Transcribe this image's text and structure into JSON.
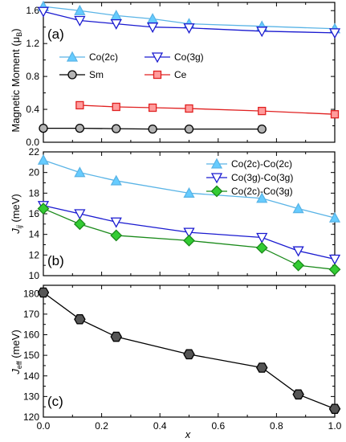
{
  "chart_data": [
    {
      "type": "line",
      "panel_label": "(a)",
      "ylabel": "Magnetic Moment (μB)",
      "ylim": [
        0.0,
        1.7
      ],
      "yticks": [
        0.0,
        0.4,
        0.8,
        1.2,
        1.6
      ],
      "xlim": [
        0.0,
        1.0
      ],
      "legend": [
        {
          "text": "Co(2c)",
          "series": 0
        },
        {
          "text": "Co(3g)",
          "series": 1
        },
        {
          "text": "Sm",
          "series": 2
        },
        {
          "text": "Ce",
          "series": 3
        }
      ],
      "series": [
        {
          "name": "Co(2c)",
          "color": "#5ab4e6",
          "marker": "triangle-up",
          "fill": "#66ccff",
          "x": [
            0.0,
            0.125,
            0.25,
            0.375,
            0.5,
            0.75,
            1.0
          ],
          "y": [
            1.65,
            1.6,
            1.54,
            1.5,
            1.44,
            1.41,
            1.38
          ]
        },
        {
          "name": "Co(3g)",
          "color": "#1a1ad0",
          "marker": "triangle-down",
          "fill": "#ffffff",
          "x": [
            0.0,
            0.125,
            0.25,
            0.375,
            0.5,
            0.75,
            1.0
          ],
          "y": [
            1.59,
            1.48,
            1.44,
            1.4,
            1.39,
            1.35,
            1.33
          ]
        },
        {
          "name": "Sm",
          "color": "#000000",
          "marker": "circle",
          "fill": "#b4b4b4",
          "x": [
            0.0,
            0.125,
            0.25,
            0.375,
            0.5,
            0.75
          ],
          "y": [
            0.17,
            0.17,
            0.165,
            0.16,
            0.16,
            0.16
          ]
        },
        {
          "name": "Ce",
          "color": "#e02020",
          "marker": "square",
          "fill": "#ff9c9c",
          "x": [
            0.125,
            0.25,
            0.375,
            0.5,
            0.75,
            1.0
          ],
          "y": [
            0.45,
            0.43,
            0.42,
            0.41,
            0.38,
            0.34
          ]
        }
      ]
    },
    {
      "type": "line",
      "panel_label": "(b)",
      "ylabel": "Jij (meV)",
      "ylim": [
        10,
        22
      ],
      "yticks": [
        10,
        12,
        14,
        16,
        18,
        20,
        22
      ],
      "xlim": [
        0.0,
        1.0
      ],
      "legend": [
        {
          "text": "Co(2c)-Co(2c)",
          "series": 0
        },
        {
          "text": "Co(3g)-Co(3g)",
          "series": 1
        },
        {
          "text": "Co(2c)-Co(3g)",
          "series": 2
        }
      ],
      "series": [
        {
          "name": "Co(2c)-Co(2c)",
          "color": "#5ab4e6",
          "marker": "triangle-up",
          "fill": "#66ccff",
          "x": [
            0.0,
            0.125,
            0.25,
            0.5,
            0.75,
            0.875,
            1.0
          ],
          "y": [
            21.2,
            20.0,
            19.2,
            18.0,
            17.5,
            16.5,
            15.6
          ]
        },
        {
          "name": "Co(3g)-Co(3g)",
          "color": "#1a1ad0",
          "marker": "triangle-down",
          "fill": "#ffffff",
          "x": [
            0.0,
            0.125,
            0.25,
            0.5,
            0.75,
            0.875,
            1.0
          ],
          "y": [
            16.8,
            16.0,
            15.2,
            14.2,
            13.7,
            12.4,
            11.6
          ]
        },
        {
          "name": "Co(2c)-Co(3g)",
          "color": "#1a8a1a",
          "marker": "diamond",
          "fill": "#33cc33",
          "x": [
            0.0,
            0.125,
            0.25,
            0.5,
            0.75,
            0.875,
            1.0
          ],
          "y": [
            16.5,
            15.0,
            13.9,
            13.4,
            12.7,
            11.0,
            10.6
          ]
        }
      ]
    },
    {
      "type": "line",
      "panel_label": "(c)",
      "ylabel": "Jeff (meV)",
      "xlabel": "x",
      "ylim": [
        120,
        184
      ],
      "yticks": [
        120,
        130,
        140,
        150,
        160,
        170,
        180
      ],
      "xlim": [
        0.0,
        1.0
      ],
      "xticks": [
        0.0,
        0.2,
        0.4,
        0.6,
        0.8,
        1.0
      ],
      "series": [
        {
          "name": "",
          "color": "#000000",
          "marker": "hexagon",
          "fill": "#555555",
          "x": [
            0.0,
            0.125,
            0.25,
            0.5,
            0.75,
            0.875,
            1.0
          ],
          "y": [
            180.5,
            167.5,
            159.0,
            150.5,
            144.0,
            131.0,
            124.0
          ]
        }
      ]
    }
  ],
  "labels": {
    "ylabel_a_main": "Magnetic Moment (μ",
    "ylabel_a_sub": "B",
    "ylabel_a_end": ")",
    "ylabel_b_main": "J",
    "ylabel_b_sub": "ij",
    "ylabel_b_end": " (meV)",
    "ylabel_c_main": "J",
    "ylabel_c_sub": "eff",
    "ylabel_c_end": " (meV)",
    "xlabel": "x",
    "xtick_labels": [
      "0.0",
      "0.2",
      "0.4",
      "0.6",
      "0.8",
      "1.0"
    ]
  }
}
